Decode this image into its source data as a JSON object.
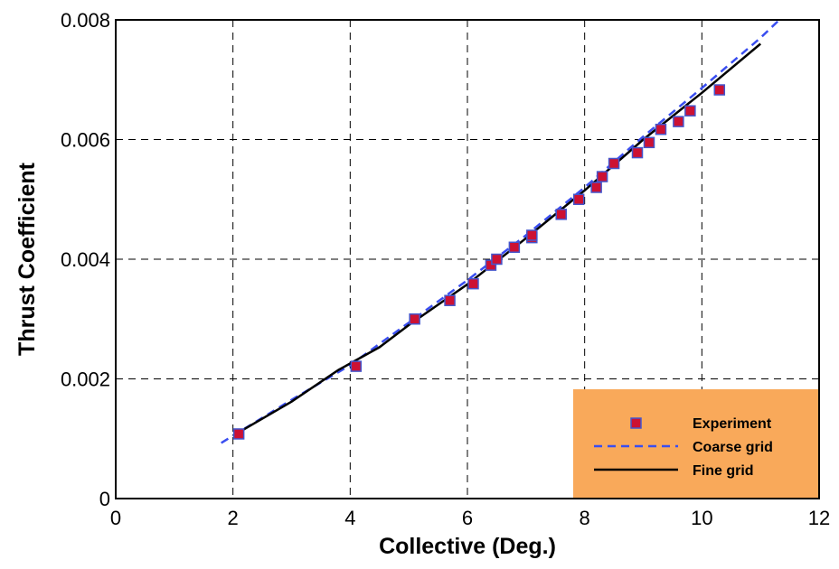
{
  "chart_data": {
    "type": "scatter",
    "xlabel": "Collective (Deg.)",
    "ylabel": "Thrust Coefficient",
    "xlim": [
      0,
      12
    ],
    "ylim": [
      0,
      0.008
    ],
    "grid": true,
    "legend_position": "bottom-right",
    "x_ticks": [
      "0",
      "2",
      "4",
      "6",
      "8",
      "10",
      "12"
    ],
    "y_ticks": [
      "0",
      "0.002",
      "0.004",
      "0.006",
      "0.008"
    ],
    "legend_labels": {
      "experiment": "Experiment",
      "coarse": "Coarse grid",
      "fine": "Fine grid"
    },
    "colors": {
      "legend_bg": "#f9a95a",
      "marker_fill": "#cc1133",
      "marker_edge": "#4455cc",
      "coarse_line": "#3a4ef0",
      "fine_line": "#000000"
    },
    "series": [
      {
        "name": "Experiment",
        "style": "markers",
        "points": [
          [
            2.1,
            0.00108
          ],
          [
            4.1,
            0.00221
          ],
          [
            5.1,
            0.003
          ],
          [
            5.7,
            0.00331
          ],
          [
            6.1,
            0.00359
          ],
          [
            6.4,
            0.0039
          ],
          [
            6.5,
            0.004
          ],
          [
            6.8,
            0.0042
          ],
          [
            7.1,
            0.00436
          ],
          [
            7.1,
            0.0044
          ],
          [
            7.6,
            0.00475
          ],
          [
            7.9,
            0.005
          ],
          [
            8.2,
            0.0052
          ],
          [
            8.3,
            0.00538
          ],
          [
            8.5,
            0.0056
          ],
          [
            8.9,
            0.00578
          ],
          [
            9.1,
            0.00595
          ],
          [
            9.3,
            0.00617
          ],
          [
            9.6,
            0.0063
          ],
          [
            9.8,
            0.00648
          ],
          [
            10.3,
            0.00683
          ]
        ]
      },
      {
        "name": "Coarse grid",
        "style": "dashed",
        "points": [
          [
            1.8,
            0.00093
          ],
          [
            3.0,
            0.00165
          ],
          [
            4.0,
            0.00223
          ],
          [
            5.0,
            0.00294
          ],
          [
            6.0,
            0.00365
          ],
          [
            7.0,
            0.0044
          ],
          [
            8.0,
            0.0052
          ],
          [
            9.0,
            0.00605
          ],
          [
            10.0,
            0.00686
          ],
          [
            11.0,
            0.0077
          ],
          [
            11.3,
            0.00798
          ]
        ]
      },
      {
        "name": "Fine grid",
        "style": "solid",
        "points": [
          [
            2.0,
            0.00105
          ],
          [
            3.0,
            0.00162
          ],
          [
            3.8,
            0.00215
          ],
          [
            4.5,
            0.00253
          ],
          [
            5.0,
            0.0029
          ],
          [
            6.0,
            0.00358
          ],
          [
            7.0,
            0.00435
          ],
          [
            8.0,
            0.00515
          ],
          [
            9.0,
            0.006
          ],
          [
            10.0,
            0.00678
          ],
          [
            11.0,
            0.0076
          ]
        ]
      }
    ]
  }
}
